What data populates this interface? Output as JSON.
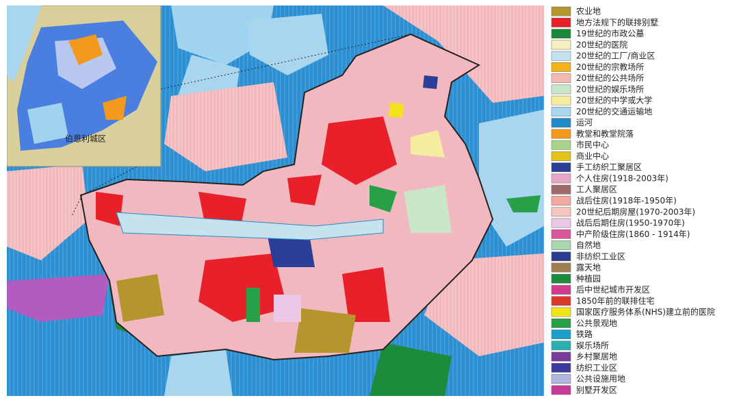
{
  "map": {
    "inset_label": "伯恩利城区"
  },
  "legend": {
    "items": [
      {
        "label": "农业地",
        "color": "#b5962e"
      },
      {
        "label": "地方法规下的联排别墅",
        "color": "#e8202a"
      },
      {
        "label": "19世纪的市政公墓",
        "color": "#1a8a3a"
      },
      {
        "label": "20世纪的医院",
        "color": "#f5efc0"
      },
      {
        "label": "20世纪的工厂/商业区",
        "color": "#c5e3ef"
      },
      {
        "label": "20世纪的宗教场所",
        "color": "#f5b21a"
      },
      {
        "label": "20世纪的公共场所",
        "color": "#f4b8b0"
      },
      {
        "label": "20世纪的娱乐场所",
        "color": "#c9e6c9"
      },
      {
        "label": "20世纪的中学或大学",
        "color": "#f6eda0"
      },
      {
        "label": "20世纪的交通运输地",
        "color": "#a9d6ee"
      },
      {
        "label": "运河",
        "color": "#1f8bc9"
      },
      {
        "label": "教堂和教堂院落",
        "color": "#f39a1e"
      },
      {
        "label": "市民中心",
        "color": "#a9d28a"
      },
      {
        "label": "商业中心",
        "color": "#e3c519"
      },
      {
        "label": "手工纺织工聚居区",
        "color": "#2b3f96"
      },
      {
        "label": "个人住房(1918-2003年)",
        "color": "#e8a6c8"
      },
      {
        "label": "工人聚居区",
        "color": "#a06a6a"
      },
      {
        "label": "战后住房(1918年-1950年)",
        "color": "#f1a9a0"
      },
      {
        "label": "20世纪后期房屋(1970-2003年)",
        "color": "#f5c6c0"
      },
      {
        "label": "战后后期住房(1950-1970年)",
        "color": "#edc8e6"
      },
      {
        "label": "中产阶级住房(1860 - 1914年)",
        "color": "#d9569c"
      },
      {
        "label": "自然地",
        "color": "#a8d8b0"
      },
      {
        "label": "非纺织工业区",
        "color": "#2a3a8f"
      },
      {
        "label": "露天地",
        "color": "#a08050"
      },
      {
        "label": "种植园",
        "color": "#1c8c3a"
      },
      {
        "label": "后中世纪城市开发区",
        "color": "#d23a8c"
      },
      {
        "label": "1850年前的联排住宅",
        "color": "#d93a2b"
      },
      {
        "label": "国家医疗服务体系(NHS)建立前的医院",
        "color": "#f2e21a"
      },
      {
        "label": "公共景观地",
        "color": "#28a048"
      },
      {
        "label": "铁路",
        "color": "#1aa0c8"
      },
      {
        "label": "娱乐场所",
        "color": "#2ab0b0"
      },
      {
        "label": "乡村聚居地",
        "color": "#7a3a9a"
      },
      {
        "label": "纺织工业区",
        "color": "#3a3aa0"
      },
      {
        "label": "公共设施用地",
        "color": "#b0b8e0"
      },
      {
        "label": "别墅开发区",
        "color": "#c83a9a"
      }
    ]
  }
}
